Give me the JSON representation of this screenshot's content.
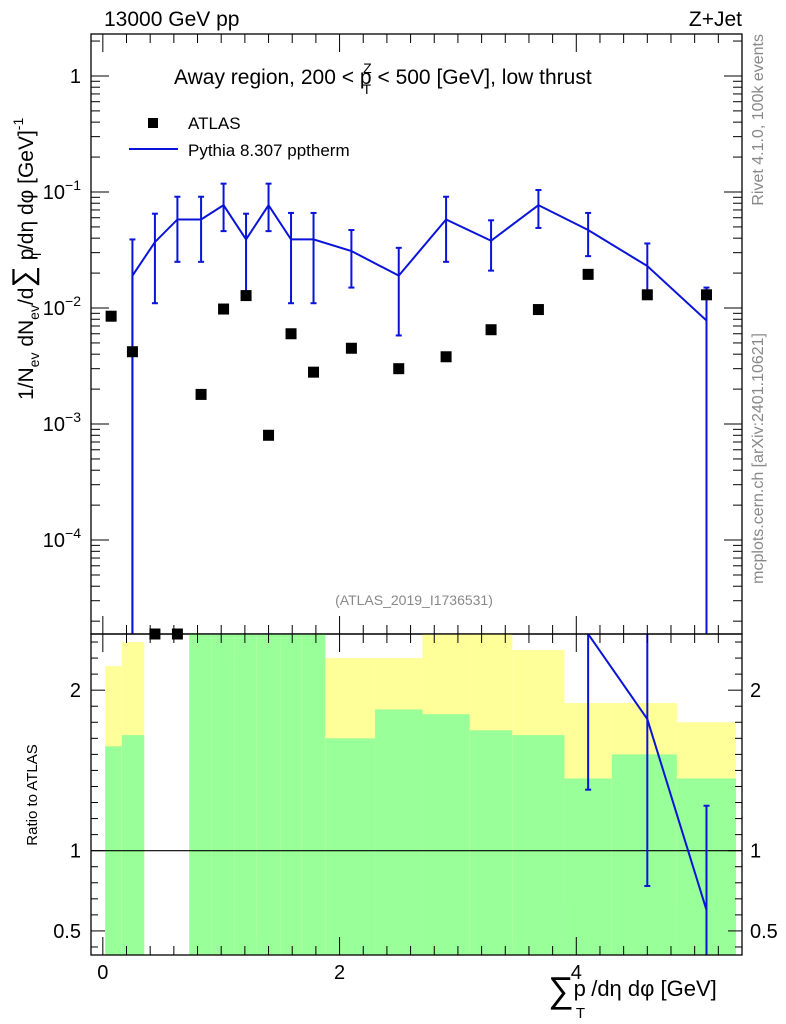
{
  "header": {
    "left": "13000 GeV pp",
    "right": "Z+Jet"
  },
  "side_labels": {
    "rivet": "Rivet 4.1.0,  100k events",
    "mcplots": "mcplots.cern.ch [arXiv:2401.10621]"
  },
  "chart_data": [
    {
      "type": "scatter",
      "panel": "main",
      "title": "Away region, 200 < p_T^Z < 500 [GeV], low thrust",
      "title_parts": {
        "pre": "Away region, 200 < p",
        "sup": "Z",
        "sub": "T",
        "post": " < 500 [GeV], low thrust"
      },
      "ylabel": "1/N_ev dN_ev/d∑p_T/dη dφ [GeV]^-1",
      "ylabel_parts": {
        "a": "1/N",
        "ev1": "ev",
        "b": " dN",
        "ev2": "ev",
        "c": "/d",
        "sum": "∑",
        "d": " p",
        "t": "T",
        "e": "/dη dφ  [GeV]",
        "sup": "-1"
      },
      "yscale": "log",
      "ylim": [
        1.55e-05,
        2.3
      ],
      "xlim": [
        -0.1,
        5.4
      ],
      "y_ticks": [
        {
          "v": 1,
          "mant": "1",
          "exp": ""
        },
        {
          "v": 0.1,
          "mant": "10",
          "exp": "−1"
        },
        {
          "v": 0.01,
          "mant": "10",
          "exp": "−2"
        },
        {
          "v": 0.001,
          "mant": "10",
          "exp": "−3"
        },
        {
          "v": 0.0001,
          "mant": "10",
          "exp": "−4"
        }
      ],
      "watermark": "(ATLAS_2019_I1736531)",
      "legend": {
        "placement": "top-left",
        "entries": [
          "ATLAS",
          "Pythia 8.307 pptherm"
        ]
      },
      "series": [
        {
          "name": "ATLAS",
          "marker": "square",
          "color": "#000000",
          "x": [
            0.07,
            0.25,
            0.44,
            0.63,
            0.83,
            1.02,
            1.21,
            1.4,
            1.59,
            1.78,
            2.1,
            2.5,
            2.9,
            3.28,
            3.68,
            4.1,
            4.6,
            5.1
          ],
          "y": [
            0.0085,
            0.0042,
            1.45e-05,
            1.45e-05,
            0.0018,
            0.0098,
            0.0128,
            0.0008,
            0.006,
            0.0028,
            0.0045,
            0.003,
            0.0038,
            0.0065,
            0.0097,
            0.0195,
            0.013,
            0.013
          ]
        },
        {
          "name": "Pythia 8.307 pptherm",
          "color": "#0a14d8",
          "x": [
            0.25,
            0.44,
            0.63,
            0.83,
            1.02,
            1.21,
            1.4,
            1.59,
            1.78,
            2.1,
            2.5,
            2.9,
            3.28,
            3.68,
            4.1,
            4.6,
            5.1
          ],
          "y": [
            0.019,
            0.037,
            0.058,
            0.058,
            0.077,
            0.039,
            0.077,
            0.039,
            0.039,
            0.031,
            0.019,
            0.058,
            0.038,
            0.077,
            0.047,
            0.023,
            0.0078
          ],
          "yerr_low": [
            1.55e-05,
            0.011,
            0.025,
            0.025,
            0.046,
            0.012,
            0.046,
            0.011,
            0.011,
            0.015,
            0.0058,
            0.025,
            0.021,
            0.049,
            0.028,
            0.013,
            1.55e-05
          ],
          "yerr_high": [
            0.039,
            0.065,
            0.091,
            0.091,
            0.118,
            0.065,
            0.118,
            0.066,
            0.066,
            0.047,
            0.033,
            0.091,
            0.057,
            0.104,
            0.066,
            0.036,
            0.015
          ]
        }
      ]
    },
    {
      "type": "area",
      "panel": "ratio",
      "ylabel": "Ratio to ATLAS",
      "xlabel": "∑p_T/dη dφ [GeV]",
      "xlabel_parts": {
        "sum": "∑",
        "p": "p",
        "t": "T",
        "rest": " /dη dφ [GeV]"
      },
      "ylim": [
        0.35,
        2.35
      ],
      "xlim": [
        -0.1,
        5.4
      ],
      "y_ticks": [
        2,
        1,
        0.5
      ],
      "x_ticks": [
        0,
        2,
        4
      ],
      "reference_line": 1,
      "bands": {
        "edges": [
          0.02,
          0.16,
          0.35,
          0.73,
          0.92,
          1.11,
          1.3,
          1.5,
          1.68,
          1.88,
          2.3,
          2.7,
          3.1,
          3.46,
          3.9,
          4.3,
          4.85,
          5.35
        ],
        "green_low": [
          0.35,
          0.35,
          null,
          0.35,
          0.35,
          0.35,
          0.35,
          0.35,
          0.35,
          0.35,
          0.35,
          0.35,
          0.35,
          0.35,
          0.35,
          0.35,
          0.35
        ],
        "green_high": [
          1.65,
          1.72,
          null,
          2.35,
          2.35,
          2.35,
          2.35,
          2.35,
          2.35,
          1.7,
          1.88,
          1.85,
          1.75,
          1.72,
          1.45,
          1.6,
          1.45
        ],
        "yellow_low": [
          0.38,
          0.35,
          null,
          0.35,
          0.35,
          0.35,
          0.46,
          0.35,
          0.35,
          0.35,
          0.38,
          0.35,
          0.35,
          0.43,
          0.68,
          0.4,
          0.66
        ],
        "yellow_high": [
          2.15,
          2.3,
          null,
          2.35,
          2.35,
          2.2,
          2.35,
          2.28,
          2.35,
          2.2,
          2.2,
          2.35,
          2.35,
          2.25,
          1.92,
          1.92,
          1.8
        ]
      },
      "series": [
        {
          "name": "Pythia 8.307 pptherm",
          "color": "#0a14d8",
          "x": [
            4.1,
            4.6,
            5.1
          ],
          "y": [
            2.4,
            1.82,
            0.63
          ],
          "yerr_low": [
            1.38,
            0.78,
            0.35
          ],
          "yerr_high": [
            2.35,
            2.35,
            1.28
          ]
        }
      ]
    }
  ]
}
